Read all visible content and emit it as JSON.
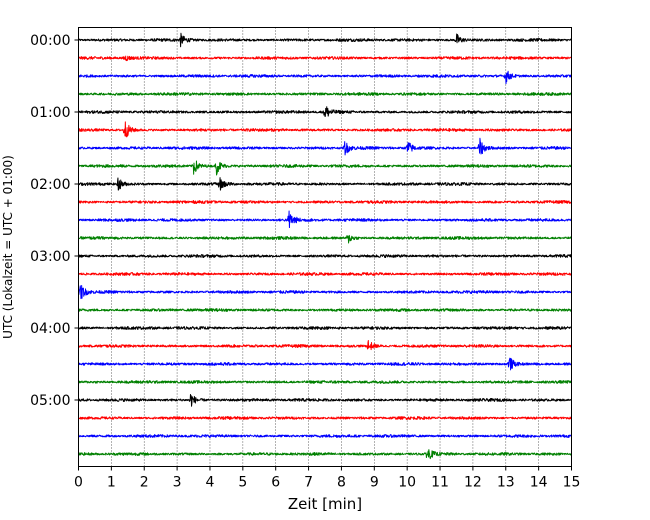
{
  "chart_data": {
    "type": "line",
    "title": "",
    "xlabel": "Zeit  [min]",
    "ylabel": "UTC (Lokalzeit = UTC + 01:00)",
    "xlim": [
      0,
      15
    ],
    "x_ticks": [
      "0",
      "1",
      "2",
      "3",
      "4",
      "5",
      "6",
      "7",
      "8",
      "9",
      "10",
      "11",
      "12",
      "13",
      "14",
      "15"
    ],
    "y_ticks": [
      "00:00",
      "01:00",
      "02:00",
      "03:00",
      "04:00",
      "05:00"
    ],
    "trace_interval_min": 15,
    "trace_count": 24,
    "trace_colors": [
      "#000000",
      "#ff0000",
      "#0000ff",
      "#008000"
    ],
    "grid": "vertical dotted at each minute",
    "events": [
      {
        "trace": 0,
        "minute": 3.1,
        "amp": 0.35
      },
      {
        "trace": 0,
        "minute": 11.5,
        "amp": 0.35
      },
      {
        "trace": 1,
        "minute": 1.4,
        "amp": 0.2
      },
      {
        "trace": 2,
        "minute": 13.0,
        "amp": 0.4
      },
      {
        "trace": 4,
        "minute": 7.5,
        "amp": 0.45
      },
      {
        "trace": 5,
        "minute": 1.4,
        "amp": 0.6
      },
      {
        "trace": 6,
        "minute": 8.1,
        "amp": 0.4
      },
      {
        "trace": 6,
        "minute": 10.0,
        "amp": 0.45
      },
      {
        "trace": 6,
        "minute": 12.2,
        "amp": 0.55
      },
      {
        "trace": 7,
        "minute": 3.5,
        "amp": 0.5
      },
      {
        "trace": 7,
        "minute": 4.2,
        "amp": 0.45
      },
      {
        "trace": 8,
        "minute": 1.2,
        "amp": 0.4
      },
      {
        "trace": 8,
        "minute": 4.3,
        "amp": 0.35
      },
      {
        "trace": 10,
        "minute": 6.4,
        "amp": 0.55
      },
      {
        "trace": 11,
        "minute": 8.2,
        "amp": 0.3
      },
      {
        "trace": 14,
        "minute": 0.05,
        "amp": 0.5
      },
      {
        "trace": 17,
        "minute": 8.8,
        "amp": 0.4
      },
      {
        "trace": 18,
        "minute": 13.1,
        "amp": 0.45
      },
      {
        "trace": 20,
        "minute": 3.4,
        "amp": 0.45
      },
      {
        "trace": 23,
        "minute": 10.6,
        "amp": 0.45
      }
    ]
  }
}
